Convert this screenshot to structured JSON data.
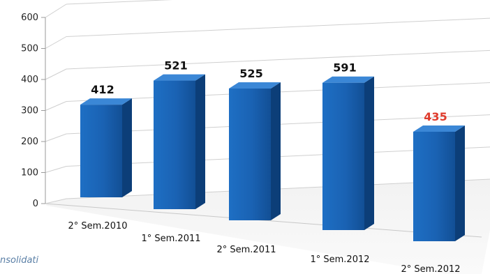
{
  "chart_data": {
    "type": "bar",
    "categories": [
      "2° Sem.2010",
      "1° Sem.2011",
      "2° Sem.2011",
      "1° Sem.2012",
      "2° Sem.2012"
    ],
    "values": [
      412,
      521,
      525,
      591,
      435
    ],
    "data_labels": [
      "412",
      "521",
      "525",
      "591",
      "435"
    ],
    "title": "",
    "xlabel": "",
    "ylabel": "",
    "ylim": [
      0,
      600
    ],
    "yticks": [
      "0",
      "100",
      "200",
      "300",
      "400",
      "500",
      "600"
    ],
    "grid": true,
    "legend": "none",
    "bar_color": "#1a62b3",
    "highlight_color": "#e03c2d",
    "highlight_index": 4
  },
  "footnote": "nsolidati"
}
